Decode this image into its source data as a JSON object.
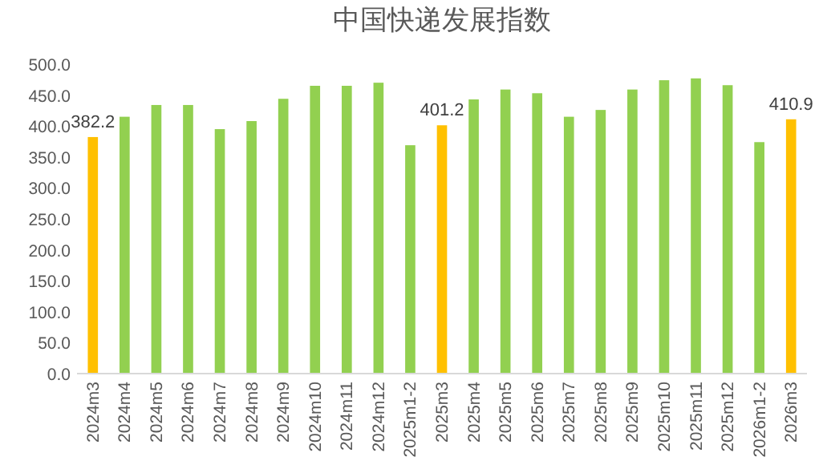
{
  "chart_data": {
    "type": "bar",
    "title": "中国快递发展指数",
    "categories": [
      "2024m3",
      "2024m4",
      "2024m5",
      "2024m6",
      "2024m7",
      "2024m8",
      "2024m9",
      "2024m10",
      "2024m11",
      "2024m12",
      "2025m1-2",
      "2025m3",
      "2025m4",
      "2025m5",
      "2025m6",
      "2025m7",
      "2025m8",
      "2025m9",
      "2025m10",
      "2025m11",
      "2025m12",
      "2026m1-2",
      "2026m3"
    ],
    "values": [
      382.2,
      415,
      434,
      434,
      395,
      408,
      444,
      465,
      465,
      470,
      369,
      401.2,
      443,
      459,
      453,
      415,
      426,
      459,
      474,
      477,
      466,
      374,
      410.9
    ],
    "colors": [
      "#ffc000",
      "#92d050",
      "#92d050",
      "#92d050",
      "#92d050",
      "#92d050",
      "#92d050",
      "#92d050",
      "#92d050",
      "#92d050",
      "#92d050",
      "#ffc000",
      "#92d050",
      "#92d050",
      "#92d050",
      "#92d050",
      "#92d050",
      "#92d050",
      "#92d050",
      "#92d050",
      "#92d050",
      "#92d050",
      "#ffc000"
    ],
    "value_labels": [
      "382.2",
      null,
      null,
      null,
      null,
      null,
      null,
      null,
      null,
      null,
      null,
      "401.2",
      null,
      null,
      null,
      null,
      null,
      null,
      null,
      null,
      null,
      null,
      "410.9"
    ],
    "ylim": [
      0,
      500
    ],
    "yticks": [
      {
        "value": 0,
        "label": "0.0"
      },
      {
        "value": 50,
        "label": "50.0"
      },
      {
        "value": 100,
        "label": "100.0"
      },
      {
        "value": 150,
        "label": "150.0"
      },
      {
        "value": 200,
        "label": "200.0"
      },
      {
        "value": 250,
        "label": "250.0"
      },
      {
        "value": 300,
        "label": "300.0"
      },
      {
        "value": 350,
        "label": "350.0"
      },
      {
        "value": 400,
        "label": "400.0"
      },
      {
        "value": 450,
        "label": "450.0"
      },
      {
        "value": 500,
        "label": "500.0"
      }
    ]
  }
}
